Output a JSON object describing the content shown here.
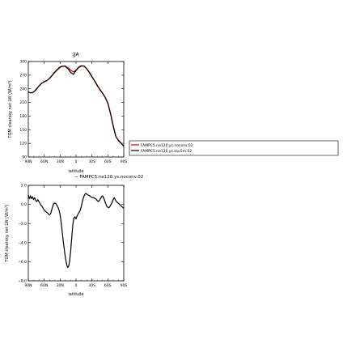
{
  "chart_data": [
    {
      "type": "line",
      "title": "JJA",
      "xlabel": "latitude",
      "ylabel": "TOM clearsky net LW (W/m²)",
      "xlim": [
        -90,
        90
      ],
      "ylim": [
        90,
        300
      ],
      "x_ticks": [
        -90,
        -60,
        -30,
        0,
        30,
        60,
        90
      ],
      "x_tick_labels": [
        "90N",
        "60N",
        "30N",
        "0",
        "30S",
        "60S",
        "90S"
      ],
      "y_ticks": [
        90,
        120,
        150,
        180,
        210,
        240,
        270,
        300
      ],
      "y_tick_labels": [
        "90",
        "120",
        "150",
        "180",
        "210",
        "240",
        "270",
        "300"
      ],
      "legend_position": "right",
      "series": [
        {
          "name": "FAMPC5.ne120.ys.noconv.02",
          "color": "#cc0000",
          "x": [
            -90,
            -85,
            -80,
            -75,
            -70,
            -65,
            -60,
            -55,
            -50,
            -45,
            -40,
            -35,
            -30,
            -25,
            -20,
            -15,
            -10,
            -5,
            0,
            5,
            10,
            15,
            20,
            25,
            30,
            35,
            40,
            45,
            50,
            55,
            60,
            65,
            70,
            75,
            80,
            85,
            90
          ],
          "y": [
            232,
            231,
            233,
            238,
            246,
            252,
            255,
            258,
            263,
            269,
            276,
            282,
            287,
            290,
            290,
            286,
            281,
            277,
            281,
            288,
            291,
            290,
            285,
            277,
            267,
            258,
            248,
            239,
            231,
            222,
            209,
            187,
            160,
            136,
            127,
            121,
            113
          ]
        },
        {
          "name": "FAMPC5.ne120.ys.tau5m.02",
          "color": "#000000",
          "x": [
            -90,
            -85,
            -80,
            -75,
            -70,
            -65,
            -60,
            -55,
            -50,
            -45,
            -40,
            -35,
            -30,
            -25,
            -20,
            -15,
            -10,
            -5,
            0,
            5,
            10,
            15,
            20,
            25,
            30,
            35,
            40,
            45,
            50,
            55,
            60,
            65,
            70,
            75,
            80,
            85,
            90
          ],
          "y": [
            233,
            231,
            233,
            239,
            246,
            252,
            256,
            258,
            263,
            270,
            277,
            283,
            288,
            290,
            289,
            284,
            276,
            272,
            280,
            287,
            290,
            290,
            284,
            276,
            266,
            257,
            247,
            238,
            230,
            221,
            208,
            185,
            158,
            135,
            126,
            120,
            114
          ]
        }
      ]
    },
    {
      "type": "line",
      "title": "",
      "xlabel": "latitude",
      "ylabel": "TOM clearsky net LW (W/m²)",
      "xlim": [
        -90,
        90
      ],
      "ylim": [
        -8,
        2
      ],
      "x_ticks": [
        -90,
        -60,
        -30,
        0,
        30,
        60,
        90
      ],
      "x_tick_labels": [
        "90N",
        "60N",
        "30N",
        "0",
        "30S",
        "60S",
        "90S"
      ],
      "y_ticks": [
        -8,
        -6,
        -4,
        -2,
        0,
        2
      ],
      "y_tick_labels": [
        "−8.0",
        "−6.0",
        "−4.0",
        "−2.0",
        "0.0",
        "2.0"
      ],
      "legend_label": "− FAMPC5.ne120.ys.noconv.02",
      "series": [
        {
          "color": "#000000",
          "x": [
            -90,
            -88,
            -86,
            -84,
            -82,
            -80,
            -78,
            -76,
            -74,
            -72,
            -70,
            -68,
            -66,
            -64,
            -62,
            -60,
            -58,
            -56,
            -54,
            -52,
            -50,
            -48,
            -46,
            -44,
            -42,
            -40,
            -38,
            -36,
            -34,
            -32,
            -30,
            -28,
            -26,
            -24,
            -22,
            -20,
            -18,
            -16,
            -14,
            -12,
            -10,
            -8,
            -6,
            -4,
            -2,
            0,
            2,
            4,
            6,
            8,
            10,
            12,
            14,
            16,
            18,
            20,
            22,
            24,
            26,
            28,
            30,
            32,
            34,
            36,
            38,
            40,
            42,
            44,
            46,
            48,
            50,
            52,
            54,
            56,
            58,
            60,
            62,
            64,
            66,
            68,
            70,
            72,
            74,
            76,
            78,
            80,
            82,
            84,
            86,
            88,
            90
          ],
          "y": [
            1.0,
            0.6,
            0.9,
            0.6,
            0.8,
            0.5,
            0.7,
            0.4,
            0.3,
            0.5,
            0.3,
            0.1,
            -0.1,
            -0.2,
            -0.4,
            -0.6,
            -0.7,
            -0.8,
            -0.9,
            -1.0,
            -1.1,
            -1.0,
            -0.6,
            -0.2,
            0.1,
            0.15,
            0.1,
            -0.1,
            -0.3,
            -0.6,
            -1.1,
            -1.9,
            -2.9,
            -3.9,
            -4.8,
            -5.6,
            -6.2,
            -6.6,
            -6.5,
            -5.9,
            -4.8,
            -3.4,
            -2.1,
            -1.4,
            -1.3,
            -1.5,
            -1.2,
            -1.0,
            -0.8,
            -0.6,
            -0.2,
            0.3,
            0.7,
            1.0,
            1.15,
            1.1,
            1.0,
            0.95,
            0.9,
            0.8,
            0.75,
            0.7,
            0.7,
            0.6,
            0.55,
            0.4,
            0.3,
            0.4,
            0.6,
            0.8,
            0.9,
            0.7,
            0.4,
            0.1,
            -0.2,
            -0.3,
            -0.35,
            -0.2,
            0.0,
            0.2,
            0.5,
            0.7,
            0.5,
            0.3,
            0.2,
            0.1,
            0.0,
            -0.1,
            -0.2,
            -0.3,
            -0.4
          ]
        }
      ]
    }
  ]
}
